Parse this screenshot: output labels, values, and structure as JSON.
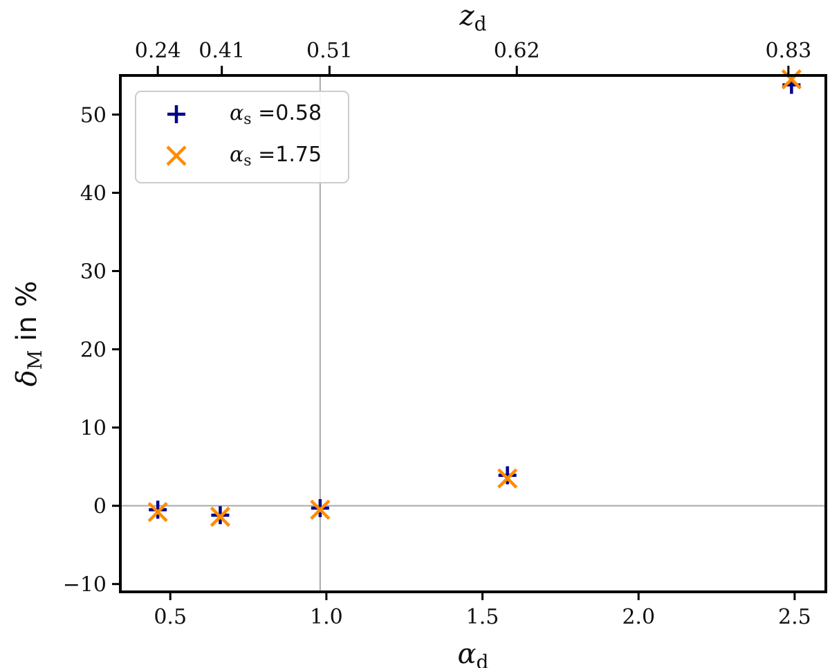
{
  "chart_data": {
    "type": "scatter",
    "xlabel": "α",
    "xlabel_sub": "d",
    "ylabel_main": "δ",
    "ylabel_sub": "M",
    "ylabel_suffix": " in %",
    "top_axis_label": "z",
    "top_axis_label_sub": "d",
    "xlim": [
      0.34,
      2.6
    ],
    "ylim": [
      -11,
      55
    ],
    "x_ticks": [
      0.5,
      1.0,
      1.5,
      2.0,
      2.5
    ],
    "x_tick_labels": [
      "0.5",
      "1.0",
      "1.5",
      "2.0",
      "2.5"
    ],
    "y_ticks": [
      -10,
      0,
      10,
      20,
      30,
      40,
      50
    ],
    "y_tick_labels": [
      "−10",
      "0",
      "10",
      "20",
      "30",
      "40",
      "50"
    ],
    "top_ticks": [
      {
        "x": 0.46,
        "label": "0.24"
      },
      {
        "x": 0.665,
        "label": "0.41"
      },
      {
        "x": 1.01,
        "label": "0.51"
      },
      {
        "x": 1.61,
        "label": "0.62"
      },
      {
        "x": 2.48,
        "label": "0.83"
      }
    ],
    "reference_lines": {
      "x": 0.98,
      "y": 0
    },
    "legend_position": "top-left",
    "series": [
      {
        "name": "α",
        "name_sub": "s",
        "name_value": " =0.58",
        "marker": "plus",
        "color": "#00008b",
        "x": [
          0.46,
          0.66,
          0.98,
          1.58,
          2.49
        ],
        "y": [
          -0.5,
          -1.2,
          -0.3,
          3.9,
          53.8
        ]
      },
      {
        "name": "α",
        "name_sub": "s",
        "name_value": " =1.75",
        "marker": "x",
        "color": "#ff8c00",
        "x": [
          0.46,
          0.66,
          0.98,
          1.58,
          2.49
        ],
        "y": [
          -0.8,
          -1.4,
          -0.5,
          3.5,
          54.5
        ]
      }
    ]
  }
}
